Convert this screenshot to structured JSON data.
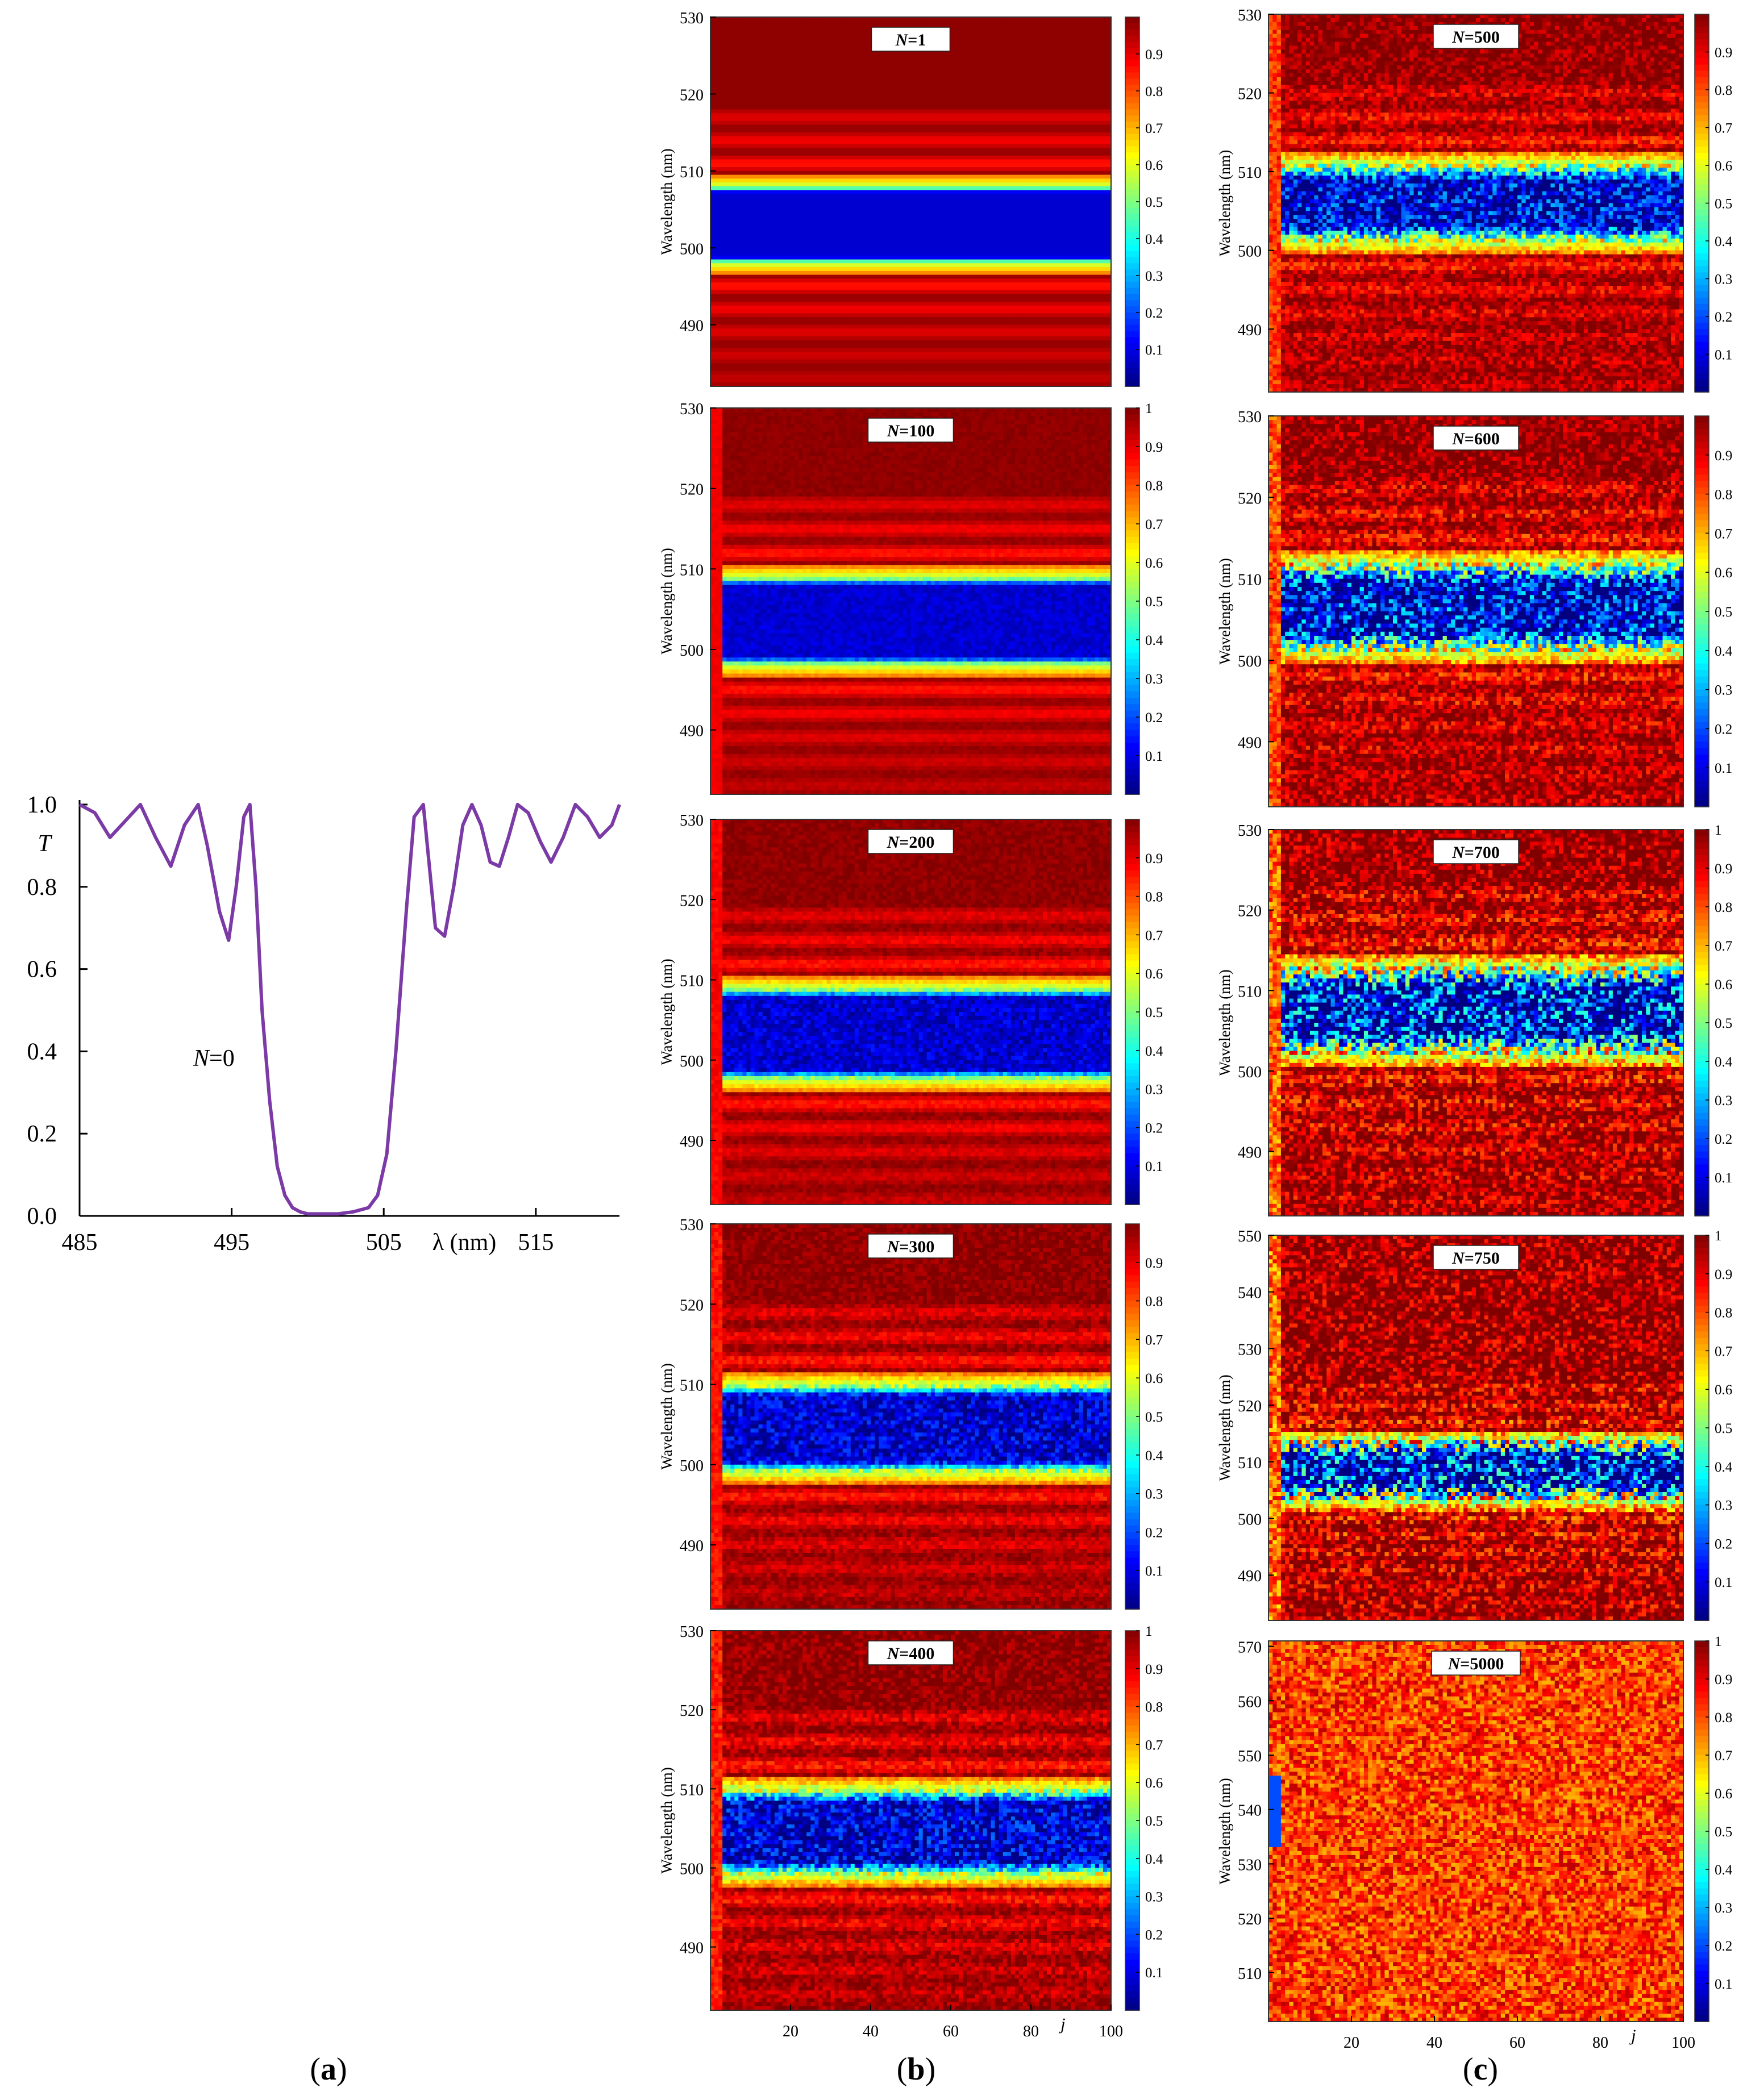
{
  "panels": {
    "a": "a",
    "b": "b",
    "c": "c"
  },
  "chart_data": [
    {
      "id": "a",
      "type": "line",
      "xlabel": "λ (nm)",
      "ylabel": "T",
      "annotation": "N=0",
      "xlim": [
        485,
        520.5
      ],
      "ylim": [
        0.0,
        1.0
      ],
      "xticks": [
        485,
        495,
        505,
        515
      ],
      "yticks": [
        "0.0",
        "0.2",
        "0.4",
        "0.6",
        "0.8",
        "1.0"
      ],
      "color": "#7b3aa6",
      "x": [
        485.0,
        486.0,
        487.0,
        488.0,
        489.0,
        490.0,
        491.0,
        491.9,
        492.8,
        493.4,
        494.2,
        494.8,
        495.3,
        495.8,
        496.2,
        496.6,
        497.0,
        497.5,
        498.0,
        498.5,
        499.0,
        499.5,
        500.0,
        501.0,
        502.0,
        503.0,
        504.0,
        504.6,
        505.2,
        505.8,
        506.5,
        507.0,
        507.6,
        508.0,
        508.4,
        509.0,
        509.6,
        510.2,
        510.8,
        511.4,
        512.0,
        512.6,
        513.2,
        513.8,
        514.5,
        515.3,
        516.0,
        516.8,
        517.6,
        518.4,
        519.2,
        520.0,
        520.5
      ],
      "y": [
        1.0,
        0.98,
        0.92,
        0.96,
        1.0,
        0.92,
        0.85,
        0.95,
        1.0,
        0.9,
        0.74,
        0.67,
        0.8,
        0.97,
        1.0,
        0.8,
        0.5,
        0.28,
        0.12,
        0.05,
        0.02,
        0.01,
        0.005,
        0.005,
        0.005,
        0.01,
        0.02,
        0.05,
        0.15,
        0.4,
        0.75,
        0.97,
        1.0,
        0.85,
        0.7,
        0.68,
        0.8,
        0.95,
        1.0,
        0.95,
        0.86,
        0.85,
        0.92,
        1.0,
        0.98,
        0.91,
        0.86,
        0.92,
        1.0,
        0.97,
        0.92,
        0.95,
        1.0
      ]
    },
    {
      "id": "b",
      "type": "heatmap",
      "xlabel": "j",
      "ylabel": "Wavelength (nm)",
      "xticks": [
        20,
        40,
        60,
        80,
        100
      ],
      "colorbar_ticks": [
        "0.1",
        "0.2",
        "0.3",
        "0.4",
        "0.5",
        "0.6",
        "0.7",
        "0.8",
        "0.9",
        "1"
      ],
      "colormap": "jet",
      "subplots": [
        {
          "title": "N=1",
          "yticks": [
            490,
            500,
            510,
            520,
            530
          ],
          "ylim": [
            482,
            530
          ],
          "gap": [
            498,
            508
          ],
          "disorder": 0.0,
          "cbar_top": ""
        },
        {
          "title": "N=100",
          "yticks": [
            490,
            500,
            510,
            520,
            530
          ],
          "ylim": [
            482,
            530
          ],
          "gap": [
            498,
            509
          ],
          "disorder": 0.08,
          "cbar_top": "1"
        },
        {
          "title": "N=200",
          "yticks": [
            490,
            500,
            510,
            520,
            530
          ],
          "ylim": [
            482,
            530
          ],
          "gap": [
            497.5,
            509
          ],
          "disorder": 0.15,
          "cbar_top": ""
        },
        {
          "title": "N=300",
          "yticks": [
            490,
            500,
            510,
            520,
            530
          ],
          "ylim": [
            482,
            530
          ],
          "gap": [
            499,
            510
          ],
          "disorder": 0.25,
          "cbar_top": ""
        },
        {
          "title": "N=400",
          "yticks": [
            490,
            500,
            510,
            520,
            530
          ],
          "ylim": [
            482,
            530
          ],
          "gap": [
            499,
            510
          ],
          "disorder": 0.35,
          "cbar_top": "1"
        }
      ]
    },
    {
      "id": "c",
      "type": "heatmap",
      "xlabel": "j",
      "ylabel": "Wavelength (nm)",
      "xticks": [
        20,
        40,
        60,
        80,
        100
      ],
      "colorbar_ticks": [
        "0.1",
        "0.2",
        "0.3",
        "0.4",
        "0.5",
        "0.6",
        "0.7",
        "0.8",
        "0.9",
        "1"
      ],
      "colormap": "jet",
      "subplots": [
        {
          "title": "N=500",
          "yticks": [
            490,
            500,
            510,
            520,
            530
          ],
          "ylim": [
            482,
            530
          ],
          "gap": [
            501,
            511
          ],
          "disorder": 0.5,
          "cbar_top": ""
        },
        {
          "title": "N=600",
          "yticks": [
            490,
            500,
            510,
            520,
            530
          ],
          "ylim": [
            482,
            530
          ],
          "gap": [
            501,
            512
          ],
          "disorder": 0.65,
          "cbar_top": ""
        },
        {
          "title": "N=700",
          "yticks": [
            490,
            500,
            510,
            520,
            530
          ],
          "ylim": [
            482,
            530
          ],
          "gap": [
            502,
            513
          ],
          "disorder": 0.8,
          "cbar_top": "1"
        },
        {
          "title": "N=750",
          "yticks": [
            490,
            500,
            510,
            520,
            530,
            540,
            550
          ],
          "ylim": [
            482,
            550
          ],
          "gap": [
            503,
            514
          ],
          "disorder": 0.9,
          "cbar_top": "1"
        },
        {
          "title": "N=5000",
          "yticks": [
            510,
            520,
            530,
            540,
            550,
            560,
            570
          ],
          "ylim": [
            501,
            571
          ],
          "gap": [
            535,
            545
          ],
          "disorder": 1.0,
          "cbar_top": "1"
        }
      ]
    }
  ]
}
